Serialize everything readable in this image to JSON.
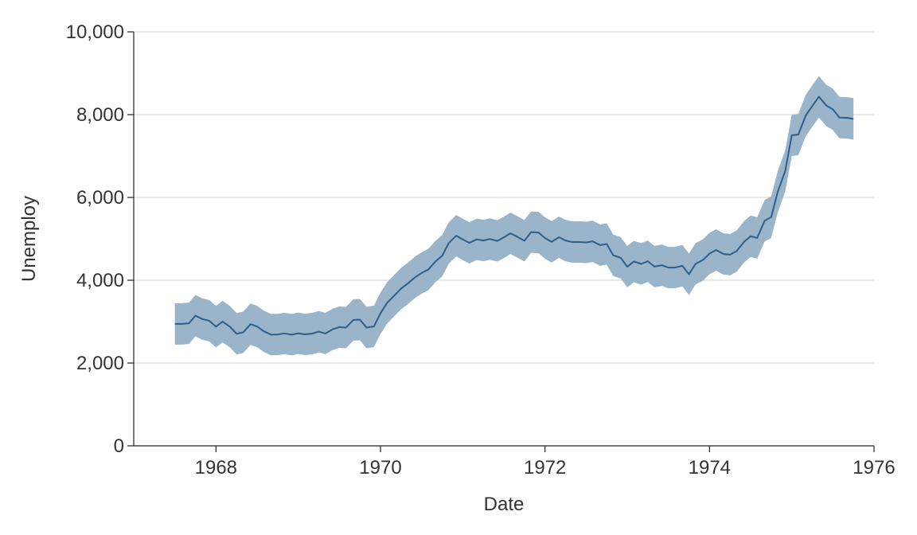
{
  "chart_data": {
    "type": "line",
    "title": "",
    "xlabel": "Date",
    "ylabel": "Unemploy",
    "xlim": [
      1967.0,
      1976.0
    ],
    "ylim": [
      0,
      10000
    ],
    "x_ticks": [
      1968,
      1970,
      1972,
      1974,
      1976
    ],
    "x_tick_labels": [
      "1968",
      "1970",
      "1972",
      "1974",
      "1976"
    ],
    "y_ticks": [
      0,
      2000,
      4000,
      6000,
      8000,
      10000
    ],
    "y_tick_labels": [
      "0",
      "2,000",
      "4,000",
      "6,000",
      "8,000",
      "10,000"
    ],
    "grid": "horizontal",
    "colors": {
      "line": "#2d5f8a",
      "band": "#9ab4c9"
    },
    "series": [
      {
        "band_width": 500,
        "x": [
          1967.5,
          1967.58,
          1967.67,
          1967.75,
          1967.83,
          1967.92,
          1968.0,
          1968.08,
          1968.17,
          1968.25,
          1968.33,
          1968.42,
          1968.5,
          1968.58,
          1968.67,
          1968.75,
          1968.83,
          1968.92,
          1969.0,
          1969.08,
          1969.17,
          1969.25,
          1969.33,
          1969.42,
          1969.5,
          1969.58,
          1969.67,
          1969.75,
          1969.83,
          1969.92,
          1970.0,
          1970.08,
          1970.17,
          1970.25,
          1970.33,
          1970.42,
          1970.5,
          1970.58,
          1970.67,
          1970.75,
          1970.83,
          1970.92,
          1971.0,
          1971.08,
          1971.17,
          1971.25,
          1971.33,
          1971.42,
          1971.5,
          1971.58,
          1971.67,
          1971.75,
          1971.83,
          1971.92,
          1972.0,
          1972.08,
          1972.17,
          1972.25,
          1972.33,
          1972.42,
          1972.5,
          1972.58,
          1972.67,
          1972.75,
          1972.83,
          1972.92,
          1973.0,
          1973.08,
          1973.17,
          1973.25,
          1973.33,
          1973.42,
          1973.5,
          1973.58,
          1973.67,
          1973.75,
          1973.83,
          1973.92,
          1974.0,
          1974.08,
          1974.17,
          1974.25,
          1974.33,
          1974.42,
          1974.5,
          1974.58,
          1974.67,
          1974.75,
          1974.83,
          1974.92,
          1975.0,
          1975.08,
          1975.17,
          1975.25,
          1975.33,
          1975.42,
          1975.5,
          1975.58,
          1975.67,
          1975.75
        ],
        "values": [
          2944,
          2945,
          2958,
          3143,
          3066,
          3018,
          2878,
          3001,
          2877,
          2709,
          2740,
          2938,
          2883,
          2768,
          2686,
          2689,
          2715,
          2685,
          2718,
          2692,
          2712,
          2758,
          2713,
          2816,
          2868,
          2856,
          3040,
          3049,
          2856,
          2884,
          3201,
          3453,
          3635,
          3797,
          3919,
          4071,
          4175,
          4256,
          4456,
          4591,
          4898,
          5076,
          4986,
          4903,
          4987,
          4959,
          4996,
          4949,
          5035,
          5134,
          5042,
          4954,
          5161,
          5154,
          5019,
          4928,
          5038,
          4959,
          4922,
          4923,
          4913,
          4939,
          4849,
          4875,
          4602,
          4543,
          4326,
          4452,
          4394,
          4459,
          4329,
          4363,
          4305,
          4305,
          4350,
          4144,
          4396,
          4489,
          4644,
          4731,
          4634,
          4618,
          4705,
          4927,
          5063,
          5022,
          5437,
          5523,
          6140,
          6636,
          7501,
          7520,
          7978,
          8210,
          8433,
          8220,
          8127,
          7928,
          7923,
          7897
        ]
      }
    ]
  }
}
